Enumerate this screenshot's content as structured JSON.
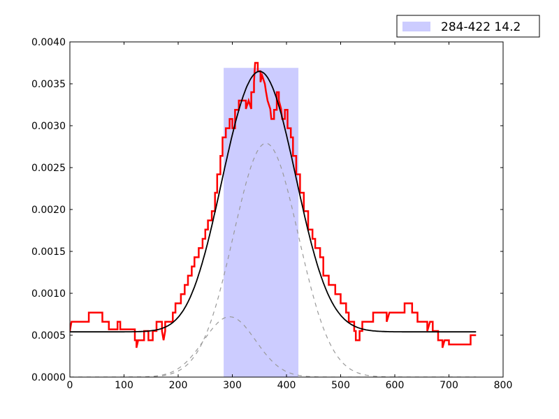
{
  "chart_data": {
    "type": "line",
    "title": "",
    "xlabel": "",
    "ylabel": "",
    "xlim": [
      0,
      800
    ],
    "ylim": [
      0.0,
      0.004
    ],
    "grid": false,
    "legend_position": "upper right (outside top)",
    "x_ticks": [
      "0",
      "100",
      "200",
      "300",
      "400",
      "500",
      "600",
      "700",
      "800"
    ],
    "y_ticks": [
      "0.0000",
      "0.0005",
      "0.0010",
      "0.0015",
      "0.0020",
      "0.0025",
      "0.0030",
      "0.0035",
      "0.0040"
    ],
    "legend": [
      {
        "label": "284-422 14.2",
        "color": "#ccccff",
        "kind": "patch"
      }
    ],
    "shaded_region": {
      "x_start": 284,
      "x_end": 422,
      "y_top": 0.00369,
      "color": "#ccccff"
    },
    "series": [
      {
        "name": "data (step)",
        "color": "#ff0000",
        "style": "solid-step",
        "points": [
          [
            0,
            0.00055
          ],
          [
            3,
            0.00066
          ],
          [
            35,
            0.00066
          ],
          [
            35,
            0.00077
          ],
          [
            60,
            0.00077
          ],
          [
            60,
            0.00066
          ],
          [
            72,
            0.00066
          ],
          [
            72,
            0.00057
          ],
          [
            88,
            0.00057
          ],
          [
            88,
            0.00066
          ],
          [
            93,
            0.00066
          ],
          [
            93,
            0.00057
          ],
          [
            120,
            0.00057
          ],
          [
            120,
            0.00044
          ],
          [
            123,
            0.00044
          ],
          [
            123,
            0.00035
          ],
          [
            126,
            0.00044
          ],
          [
            137,
            0.00044
          ],
          [
            137,
            0.00055
          ],
          [
            145,
            0.00055
          ],
          [
            145,
            0.00044
          ],
          [
            153,
            0.00044
          ],
          [
            153,
            0.00055
          ],
          [
            160,
            0.00055
          ],
          [
            160,
            0.00066
          ],
          [
            170,
            0.00066
          ],
          [
            170,
            0.00055
          ],
          [
            173,
            0.00044
          ],
          [
            176,
            0.00055
          ],
          [
            176,
            0.00066
          ],
          [
            190,
            0.00066
          ],
          [
            190,
            0.00077
          ],
          [
            195,
            0.00077
          ],
          [
            195,
            0.00088
          ],
          [
            205,
            0.00088
          ],
          [
            205,
            0.00099
          ],
          [
            212,
            0.00099
          ],
          [
            212,
            0.0011
          ],
          [
            218,
            0.0011
          ],
          [
            218,
            0.00121
          ],
          [
            225,
            0.00121
          ],
          [
            225,
            0.00132
          ],
          [
            230,
            0.00132
          ],
          [
            230,
            0.00143
          ],
          [
            238,
            0.00143
          ],
          [
            238,
            0.00154
          ],
          [
            245,
            0.00154
          ],
          [
            245,
            0.00165
          ],
          [
            250,
            0.00165
          ],
          [
            250,
            0.00176
          ],
          [
            255,
            0.00176
          ],
          [
            255,
            0.00187
          ],
          [
            262,
            0.00187
          ],
          [
            262,
            0.00198
          ],
          [
            268,
            0.00198
          ],
          [
            268,
            0.0022
          ],
          [
            272,
            0.0022
          ],
          [
            272,
            0.00242
          ],
          [
            278,
            0.00242
          ],
          [
            278,
            0.00264
          ],
          [
            282,
            0.00264
          ],
          [
            282,
            0.00286
          ],
          [
            288,
            0.00286
          ],
          [
            288,
            0.00297
          ],
          [
            295,
            0.00297
          ],
          [
            295,
            0.00308
          ],
          [
            300,
            0.00308
          ],
          [
            300,
            0.00297
          ],
          [
            305,
            0.00297
          ],
          [
            305,
            0.00319
          ],
          [
            312,
            0.00319
          ],
          [
            312,
            0.0033
          ],
          [
            325,
            0.0033
          ],
          [
            325,
            0.0032
          ],
          [
            330,
            0.0033
          ],
          [
            335,
            0.0032
          ],
          [
            335,
            0.0034
          ],
          [
            340,
            0.0034
          ],
          [
            340,
            0.00352
          ],
          [
            342,
            0.00375
          ],
          [
            347,
            0.00375
          ],
          [
            347,
            0.00365
          ],
          [
            352,
            0.00365
          ],
          [
            352,
            0.00352
          ],
          [
            355,
            0.0036
          ],
          [
            360,
            0.0035
          ],
          [
            362,
            0.00341
          ],
          [
            365,
            0.0033
          ],
          [
            370,
            0.0032
          ],
          [
            372,
            0.00308
          ],
          [
            377,
            0.00308
          ],
          [
            377,
            0.00319
          ],
          [
            382,
            0.00319
          ],
          [
            382,
            0.0034
          ],
          [
            386,
            0.0034
          ],
          [
            386,
            0.0033
          ],
          [
            390,
            0.0032
          ],
          [
            392,
            0.00308
          ],
          [
            397,
            0.00308
          ],
          [
            397,
            0.00319
          ],
          [
            402,
            0.00319
          ],
          [
            402,
            0.00297
          ],
          [
            408,
            0.00297
          ],
          [
            408,
            0.00286
          ],
          [
            412,
            0.00286
          ],
          [
            412,
            0.00264
          ],
          [
            418,
            0.00264
          ],
          [
            418,
            0.00242
          ],
          [
            425,
            0.00242
          ],
          [
            425,
            0.0022
          ],
          [
            432,
            0.0022
          ],
          [
            432,
            0.00198
          ],
          [
            440,
            0.00198
          ],
          [
            440,
            0.00176
          ],
          [
            448,
            0.00176
          ],
          [
            448,
            0.00165
          ],
          [
            453,
            0.00165
          ],
          [
            453,
            0.00154
          ],
          [
            462,
            0.00154
          ],
          [
            462,
            0.00143
          ],
          [
            468,
            0.00143
          ],
          [
            468,
            0.00121
          ],
          [
            478,
            0.00121
          ],
          [
            478,
            0.0011
          ],
          [
            490,
            0.0011
          ],
          [
            490,
            0.00099
          ],
          [
            500,
            0.00099
          ],
          [
            500,
            0.00088
          ],
          [
            510,
            0.00088
          ],
          [
            510,
            0.00077
          ],
          [
            515,
            0.00077
          ],
          [
            515,
            0.00066
          ],
          [
            525,
            0.00066
          ],
          [
            525,
            0.00055
          ],
          [
            528,
            0.00055
          ],
          [
            528,
            0.00044
          ],
          [
            535,
            0.00044
          ],
          [
            535,
            0.00055
          ],
          [
            540,
            0.00055
          ],
          [
            540,
            0.00066
          ],
          [
            560,
            0.00066
          ],
          [
            560,
            0.00077
          ],
          [
            585,
            0.00077
          ],
          [
            585,
            0.00066
          ],
          [
            590,
            0.00077
          ],
          [
            618,
            0.00077
          ],
          [
            618,
            0.00088
          ],
          [
            632,
            0.00088
          ],
          [
            632,
            0.00077
          ],
          [
            642,
            0.00077
          ],
          [
            642,
            0.00066
          ],
          [
            660,
            0.00066
          ],
          [
            660,
            0.00055
          ],
          [
            665,
            0.00066
          ],
          [
            670,
            0.00066
          ],
          [
            670,
            0.00055
          ],
          [
            680,
            0.00055
          ],
          [
            680,
            0.00044
          ],
          [
            688,
            0.00044
          ],
          [
            688,
            0.00035
          ],
          [
            692,
            0.00044
          ],
          [
            700,
            0.00044
          ],
          [
            700,
            0.00039
          ],
          [
            740,
            0.00039
          ],
          [
            740,
            0.0005
          ],
          [
            750,
            0.0005
          ]
        ]
      },
      {
        "name": "fit (sum of gaussians + baseline)",
        "color": "#000000",
        "style": "solid",
        "baseline": 0.00054,
        "components": [
          "gaussian_1",
          "gaussian_2"
        ],
        "x_range": [
          0,
          750
        ],
        "peak": {
          "x": 345,
          "y": 0.0037
        }
      },
      {
        "name": "gaussian_1",
        "color": "#999999",
        "style": "dashed",
        "center": 362,
        "amplitude": 0.00279,
        "sigma": 60,
        "x_range": [
          0,
          750
        ]
      },
      {
        "name": "gaussian_2",
        "color": "#999999",
        "style": "dashed",
        "center": 295,
        "amplitude": 0.00072,
        "sigma": 48,
        "x_range": [
          0,
          750
        ]
      }
    ]
  }
}
